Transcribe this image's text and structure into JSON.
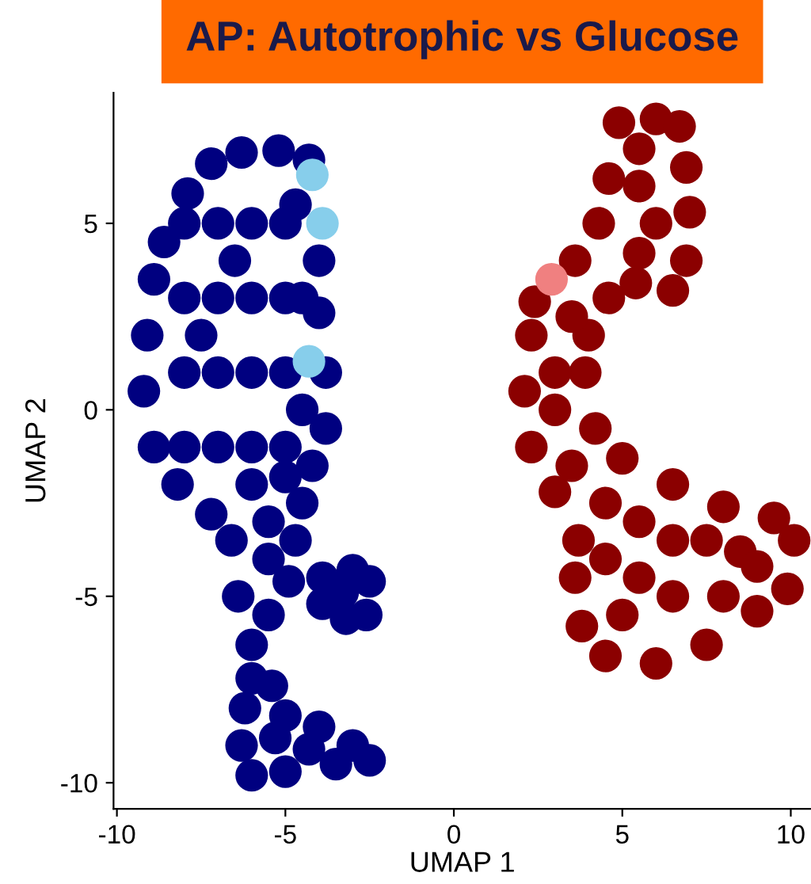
{
  "chart_data": {
    "type": "scatter",
    "title": "AP: Autotrophic vs Glucose",
    "xlabel": "UMAP 1",
    "ylabel": "UMAP 2",
    "xlim": [
      -10.1,
      10.6
    ],
    "ylim": [
      -10.7,
      8.5
    ],
    "xticks": [
      -10,
      -5,
      0,
      5,
      10
    ],
    "yticks": [
      -10,
      -5,
      0,
      5
    ],
    "grid": false,
    "legend": false,
    "marker": "circle",
    "series": [
      {
        "color": "#000080",
        "x": [
          -6.3,
          -5.2,
          -4.3,
          -4.7,
          -4.0,
          -4.0,
          -3.8,
          -3.8,
          -4.2,
          -4.5,
          -4.7,
          -4.9,
          -5.5,
          -6.0,
          -6.4,
          -6.6,
          -7.2,
          -8.2,
          -8.9,
          -9.2,
          -9.1,
          -8.9,
          -8.6,
          -7.9,
          -7.2,
          -8,
          -7,
          -6,
          -5,
          -8,
          -7,
          -6,
          -5,
          -8,
          -7,
          -6,
          -5,
          -8,
          -7,
          -6,
          -5,
          -6,
          -5.5,
          -5.5,
          -6.5,
          -7.5,
          -4.5,
          -4.5,
          -5.0,
          -3.9,
          -3.0,
          -2.5,
          -2.6,
          -3.2,
          -3.9,
          -3.3,
          -6.0,
          -5.4,
          -5.0,
          -4.0,
          -3.0,
          -2.5,
          -3.5,
          -5.0,
          -6.0,
          -6.3,
          -6.2,
          -5.3,
          -4.3
        ],
        "values": [
          6.9,
          6.95,
          6.7,
          5.5,
          4.0,
          2.6,
          1.0,
          -0.5,
          -1.5,
          -2.5,
          -3.5,
          -4.6,
          -5.5,
          -6.3,
          -5.0,
          -3.5,
          -2.8,
          -2.0,
          -1.0,
          0.5,
          2.0,
          3.5,
          4.5,
          5.8,
          6.6,
          5,
          5,
          5,
          5,
          3,
          3,
          3,
          3,
          1,
          1,
          1,
          1,
          -1,
          -1,
          -1,
          -1,
          -2,
          -3,
          -4,
          4,
          2,
          3,
          0,
          -1.8,
          -4.5,
          -4.3,
          -4.6,
          -5.5,
          -5.6,
          -5.2,
          -4.9,
          -7.2,
          -7.4,
          -8.2,
          -8.5,
          -9.0,
          -9.4,
          -9.5,
          -9.7,
          -9.8,
          -9.0,
          -8.0,
          -8.8,
          -9.1
        ]
      },
      {
        "color": "#87ceeb",
        "x": [
          -4.2,
          -3.9,
          -4.3
        ],
        "values": [
          6.3,
          5.0,
          1.3
        ]
      },
      {
        "color": "#8b0000",
        "x": [
          4.9,
          6.0,
          6.7,
          6.9,
          7.0,
          6.9,
          6.5,
          5.4,
          4.6,
          4.0,
          3.9,
          4.2,
          5.0,
          6.5,
          8.0,
          9.5,
          10.1,
          9.9,
          9.0,
          7.5,
          6.0,
          4.5,
          3.8,
          3.6,
          3.7,
          3.0,
          2.3,
          2.1,
          2.3,
          2.4,
          3.6,
          4.3,
          4.6,
          5.5,
          5.5,
          6.0,
          5.5,
          3.5,
          3.0,
          3.0,
          3.5,
          4.5,
          5.5,
          6.5,
          7.5,
          8.5,
          9.0,
          8.0,
          6.5,
          5.0,
          4.5,
          5.5
        ],
        "values": [
          7.7,
          7.8,
          7.6,
          6.5,
          5.3,
          4.0,
          3.2,
          3.4,
          3.0,
          2.0,
          1.0,
          -0.5,
          -1.3,
          -2.0,
          -2.6,
          -2.9,
          -3.5,
          -4.8,
          -5.4,
          -6.3,
          -6.8,
          -6.6,
          -5.8,
          -4.5,
          -3.5,
          -2.2,
          -1.0,
          0.5,
          2.0,
          2.9,
          4.0,
          5.0,
          6.2,
          7.0,
          6.0,
          5.0,
          4.2,
          2.5,
          1.0,
          0,
          -1.5,
          -2.5,
          -3,
          -3.5,
          -3.5,
          -3.8,
          -4.2,
          -5,
          -5,
          -5.5,
          -4.0,
          -4.5
        ]
      },
      {
        "color": "#f08080",
        "x": [
          2.9
        ],
        "values": [
          3.5
        ]
      }
    ]
  }
}
